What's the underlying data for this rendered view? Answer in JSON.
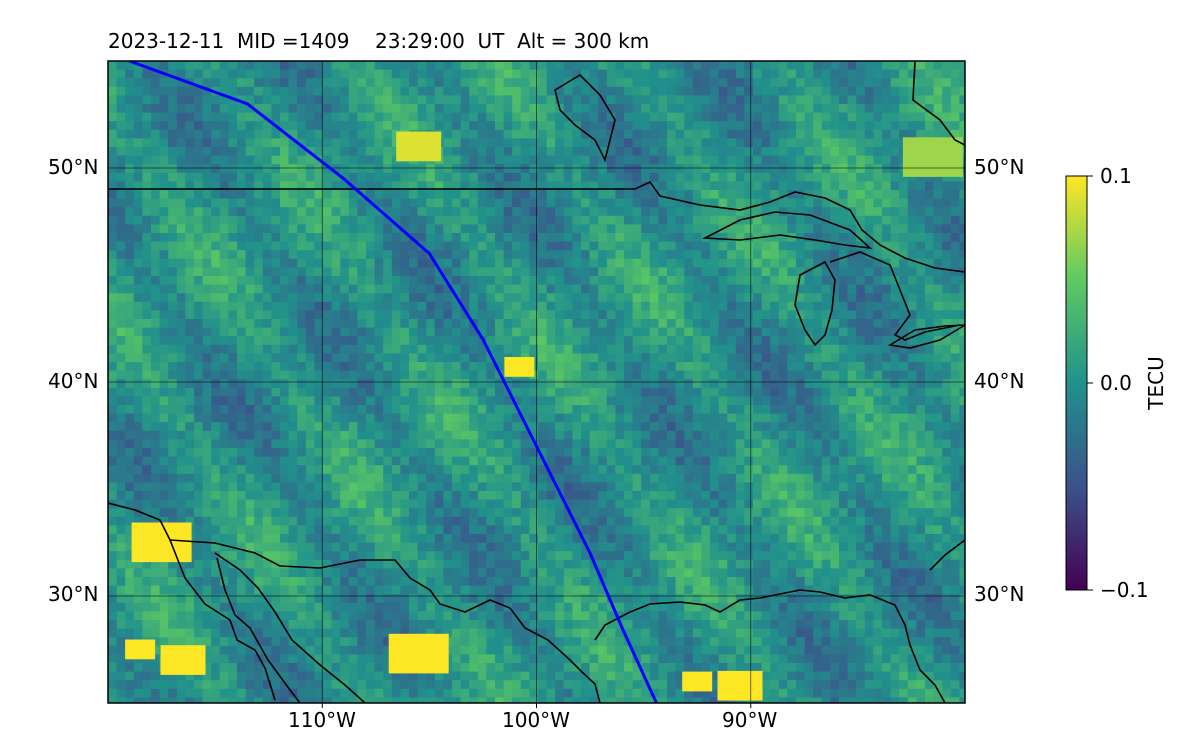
{
  "title": {
    "date": "2023-12-11",
    "mid": "MID =1409",
    "time": "23:29:00  UT",
    "alt": "Alt = 300 km"
  },
  "map": {
    "lon_range": [
      -120,
      -80
    ],
    "lat_range": [
      25,
      55
    ],
    "grid_lons": [
      -110,
      -100,
      -90
    ],
    "grid_lats": [
      30,
      40,
      50
    ],
    "lon_labels": [
      "110°W",
      "100°W",
      "90°W"
    ],
    "lat_labels": [
      "30°N",
      "40°N",
      "50°N"
    ],
    "field_description_value_range": [
      -0.1,
      0.1
    ],
    "background_field_color": "#2a8a8a",
    "track_color": "#0000ff",
    "track_points": [
      [
        -119,
        55
      ],
      [
        -113.5,
        53
      ],
      [
        -109,
        49.5
      ],
      [
        -105,
        46
      ],
      [
        -102.5,
        42
      ],
      [
        -99.5,
        36
      ],
      [
        -97.5,
        32
      ],
      [
        -96,
        28.5
      ],
      [
        -94.4,
        25
      ]
    ],
    "hot_spots": [
      {
        "lon": -118.5,
        "lat": 27.5,
        "value": 0.1
      },
      {
        "lon": -116.5,
        "lat": 27.0,
        "value": 0.1
      },
      {
        "lon": -117.5,
        "lat": 32.5,
        "value": 0.1
      },
      {
        "lon": -92.5,
        "lat": 26.0,
        "value": 0.1
      },
      {
        "lon": -90.5,
        "lat": 25.8,
        "value": 0.1
      },
      {
        "lon": -105.5,
        "lat": 27.3,
        "value": 0.1
      },
      {
        "lon": -100.8,
        "lat": 40.7,
        "value": 0.1
      },
      {
        "lon": -105.5,
        "lat": 51.0,
        "value": 0.09
      },
      {
        "lon": -81.5,
        "lat": 50.5,
        "value": 0.07
      }
    ]
  },
  "colorbar": {
    "label": "TECU",
    "ticks": [
      "0.1",
      "0.0",
      "−0.1"
    ],
    "range": [
      -0.1,
      0.1
    ],
    "colormap": [
      "#440154",
      "#3b528b",
      "#21918c",
      "#5ec962",
      "#fde725"
    ]
  }
}
